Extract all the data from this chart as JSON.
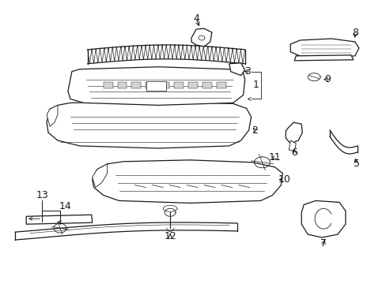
{
  "bg_color": "#ffffff",
  "fig_width": 4.89,
  "fig_height": 3.6,
  "dpi": 100,
  "line_color": "#1a1a1a",
  "lw_main": 0.9
}
